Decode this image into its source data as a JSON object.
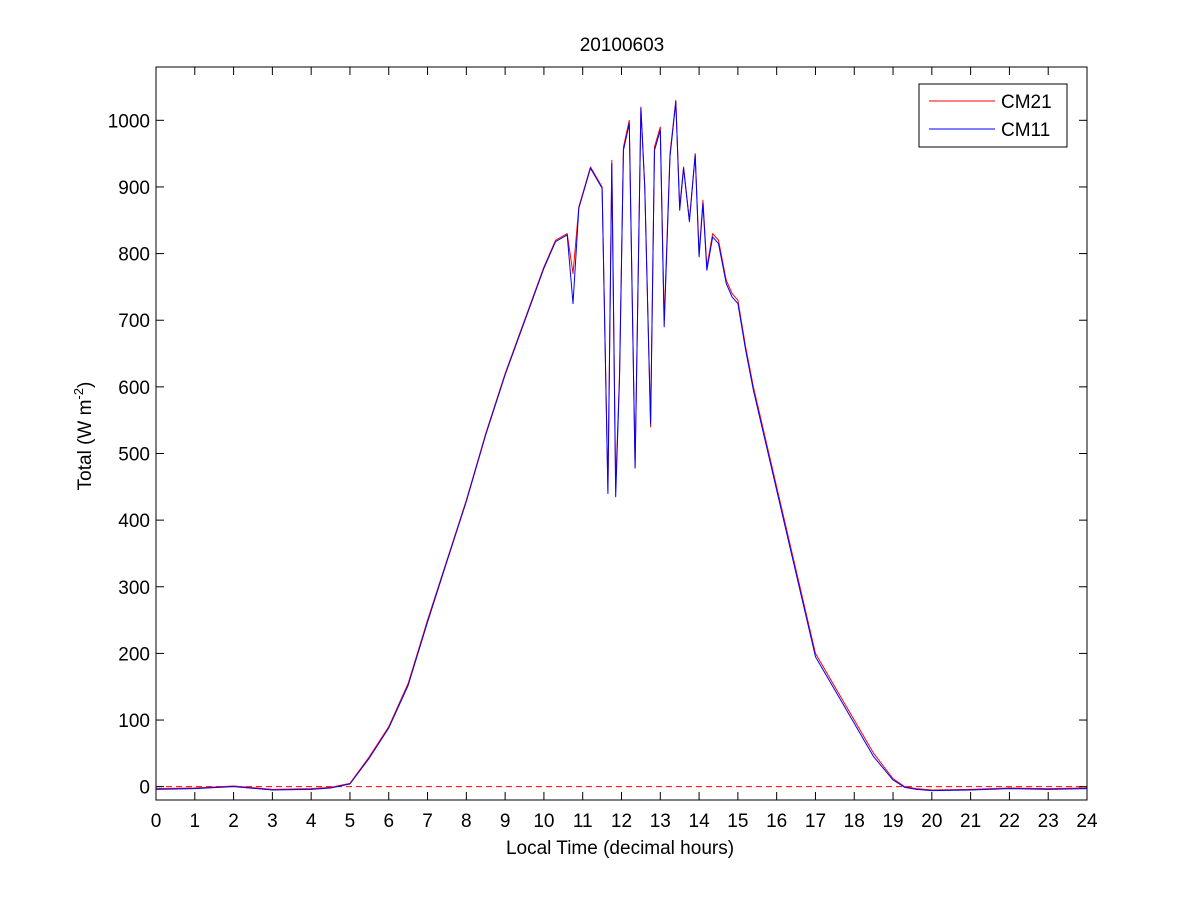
{
  "chart_data": {
    "type": "line",
    "title": "20100603",
    "xlabel": "Local Time (decimal hours)",
    "ylabel": {
      "prefix": "Total (W m",
      "superscript": "-2",
      "suffix": ")"
    },
    "xlim": [
      0,
      24
    ],
    "ylim": [
      -20,
      1080
    ],
    "x_ticks": [
      0,
      1,
      2,
      3,
      4,
      5,
      6,
      7,
      8,
      9,
      10,
      11,
      12,
      13,
      14,
      15,
      16,
      17,
      18,
      19,
      20,
      21,
      22,
      23,
      24
    ],
    "x_tick_labels": [
      "0",
      "1",
      "2",
      "3",
      "4",
      "5",
      "6",
      "7",
      "8",
      "9",
      "10",
      "11",
      "12",
      "13",
      "14",
      "15",
      "16",
      "17",
      "18",
      "19",
      "20",
      "21",
      "22",
      "23",
      "24"
    ],
    "y_ticks": [
      0,
      100,
      200,
      300,
      400,
      500,
      600,
      700,
      800,
      900,
      1000
    ],
    "y_tick_labels": [
      "0",
      "100",
      "200",
      "300",
      "400",
      "500",
      "600",
      "700",
      "800",
      "900",
      "1000"
    ],
    "grid": false,
    "legend_position": "top-right",
    "reference_line": {
      "y": 0,
      "style": "dashed",
      "color": "#ff0000"
    },
    "series": [
      {
        "name": "CM21",
        "color": "#ff0000",
        "x": [
          0,
          1,
          2,
          3,
          4,
          4.5,
          5,
          5.5,
          6,
          6.5,
          7,
          7.5,
          8,
          8.5,
          9,
          9.5,
          10,
          10.3,
          10.6,
          10.75,
          10.9,
          11.2,
          11.5,
          11.65,
          11.75,
          11.85,
          11.95,
          12.05,
          12.2,
          12.35,
          12.5,
          12.6,
          12.75,
          12.85,
          13,
          13.1,
          13.25,
          13.4,
          13.5,
          13.6,
          13.75,
          13.9,
          14,
          14.1,
          14.2,
          14.35,
          14.5,
          14.7,
          14.85,
          15,
          15.2,
          15.4,
          15.6,
          15.8,
          16,
          16.2,
          16.4,
          16.6,
          16.8,
          17,
          17.5,
          18,
          18.5,
          19,
          19.3,
          19.6,
          20,
          21,
          22,
          23,
          24
        ],
        "y": [
          -3,
          -2,
          1,
          -4,
          -3,
          -1,
          5,
          45,
          90,
          155,
          250,
          340,
          430,
          530,
          620,
          700,
          780,
          820,
          830,
          770,
          870,
          930,
          900,
          445,
          940,
          450,
          620,
          960,
          1000,
          480,
          1020,
          900,
          540,
          960,
          990,
          700,
          950,
          1030,
          870,
          930,
          850,
          950,
          800,
          880,
          780,
          830,
          820,
          760,
          740,
          730,
          660,
          600,
          550,
          500,
          450,
          400,
          350,
          300,
          250,
          200,
          150,
          100,
          50,
          12,
          0,
          -3,
          -5,
          -4,
          -2,
          -3,
          -2
        ],
        "values_note": null
      },
      {
        "name": "CM11",
        "color": "#0000ff",
        "x": [
          0,
          1,
          2,
          3,
          4,
          4.5,
          5,
          5.5,
          6,
          6.5,
          7,
          7.5,
          8,
          8.5,
          9,
          9.5,
          10,
          10.3,
          10.6,
          10.75,
          10.9,
          11.2,
          11.5,
          11.65,
          11.75,
          11.85,
          11.95,
          12.05,
          12.2,
          12.35,
          12.5,
          12.6,
          12.75,
          12.85,
          13,
          13.1,
          13.25,
          13.4,
          13.5,
          13.6,
          13.75,
          13.9,
          14,
          14.1,
          14.2,
          14.35,
          14.5,
          14.7,
          14.85,
          15,
          15.2,
          15.4,
          15.6,
          15.8,
          16,
          16.2,
          16.4,
          16.6,
          16.8,
          17,
          17.5,
          18,
          18.5,
          19,
          19.3,
          19.6,
          20,
          21,
          22,
          23,
          24
        ],
        "y": [
          -4,
          -3,
          0,
          -5,
          -4,
          -2,
          4,
          43,
          88,
          152,
          247,
          338,
          428,
          528,
          618,
          698,
          778,
          818,
          828,
          725,
          868,
          928,
          898,
          440,
          935,
          435,
          615,
          955,
          995,
          478,
          1018,
          898,
          545,
          955,
          985,
          690,
          945,
          1028,
          865,
          928,
          848,
          948,
          795,
          875,
          775,
          825,
          815,
          755,
          735,
          725,
          655,
          595,
          545,
          495,
          445,
          395,
          345,
          295,
          245,
          195,
          145,
          95,
          45,
          10,
          -1,
          -4,
          -6,
          -5,
          -3,
          -4,
          -3
        ]
      }
    ]
  }
}
